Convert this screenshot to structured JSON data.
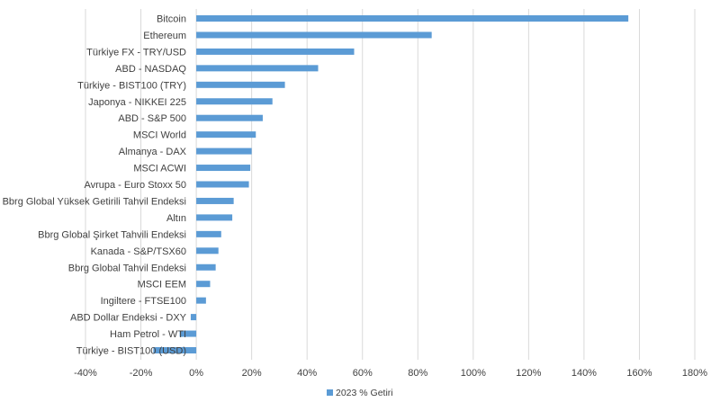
{
  "chart_data": {
    "type": "bar",
    "orientation": "horizontal",
    "categories": [
      "Bitcoin",
      "Ethereum",
      "Türkiye FX - TRY/USD",
      "ABD - NASDAQ",
      "Türkiye - BIST100 (TRY)",
      "Japonya - NIKKEI 225",
      "ABD - S&P 500",
      "MSCI World",
      "Almanya - DAX",
      "MSCI ACWI",
      "Avrupa - Euro Stoxx 50",
      "Bbrg Global Yüksek Getirili Tahvil Endeksi",
      "Altın",
      "Bbrg Global Şirket Tahvili Endeksi",
      "Kanada - S&P/TSX60",
      "Bbrg Global Tahvil Endeksi",
      "MSCI EEM",
      "Ingiltere - FTSE100",
      "ABD Dollar Endeksi - DXY",
      "Ham Petrol - WTI",
      "Türkiye - BIST100 (USD)"
    ],
    "series": [
      {
        "name": "2023 % Getiri",
        "values": [
          156,
          85,
          57,
          44,
          32,
          27.5,
          24,
          21.5,
          20,
          19.5,
          19,
          13.5,
          13,
          9,
          8,
          7,
          5,
          3.5,
          -2,
          -6,
          -15.5
        ],
        "color": "#5b9bd5"
      }
    ],
    "xlim": [
      -40,
      180
    ],
    "xticks": [
      -40,
      -20,
      0,
      20,
      40,
      60,
      80,
      100,
      120,
      140,
      160,
      180
    ],
    "tick_suffix": "%",
    "grid": "vertical",
    "legend_position": "bottom",
    "title": "",
    "xlabel": "",
    "ylabel": ""
  }
}
